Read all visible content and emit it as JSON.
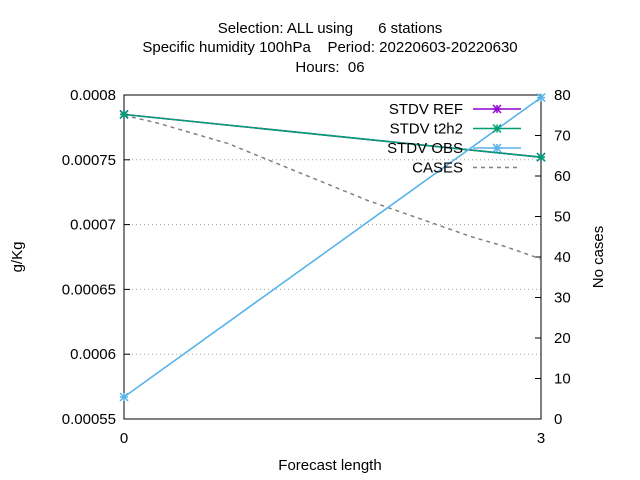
{
  "chart_data": {
    "type": "line",
    "title_lines": [
      "Selection: ALL using      6 stations",
      "Specific humidity 100hPa    Period: 20220603-20220630",
      "Hours:  06"
    ],
    "xlabel": "Forecast length",
    "ylabel": "g/Kg",
    "y2label": "No cases",
    "x": [
      0,
      3
    ],
    "xlim": [
      0,
      3
    ],
    "ylim": [
      0.00055,
      0.0008
    ],
    "y2lim": [
      0,
      80
    ],
    "xticks": [
      0,
      3
    ],
    "yticks": [
      0.00055,
      0.0006,
      0.00065,
      0.0007,
      0.00075,
      0.0008
    ],
    "ytick_labels": [
      "0.00055",
      "0.0006",
      "0.00065",
      "0.0007",
      "0.00075",
      "0.0008"
    ],
    "y2ticks": [
      0,
      10,
      20,
      30,
      40,
      50,
      60,
      70,
      80
    ],
    "grid": true,
    "legend_position": "top-right",
    "series": [
      {
        "name": "STDV REF",
        "values": [
          0.000785,
          0.000752
        ],
        "color": "#9400d3",
        "marker": "x-star",
        "axis": "y"
      },
      {
        "name": "STDV t2h2",
        "values": [
          0.000785,
          0.000752
        ],
        "color": "#009e73",
        "marker": "x-star",
        "axis": "y"
      },
      {
        "name": "STDV OBS",
        "values": [
          0.000567,
          0.000798
        ],
        "color": "#56b4e9",
        "marker": "x-star",
        "axis": "y"
      },
      {
        "name": "CASES",
        "x": [
          0,
          0.25,
          0.5,
          0.75,
          1,
          1.25,
          1.5,
          1.75,
          2,
          2.25,
          2.5,
          2.75,
          3
        ],
        "values": [
          75,
          73,
          70.5,
          68,
          64.5,
          61,
          57.5,
          54,
          51,
          48,
          45,
          42.5,
          39.5
        ],
        "color": "#808080",
        "dash": true,
        "axis": "y2"
      }
    ]
  }
}
